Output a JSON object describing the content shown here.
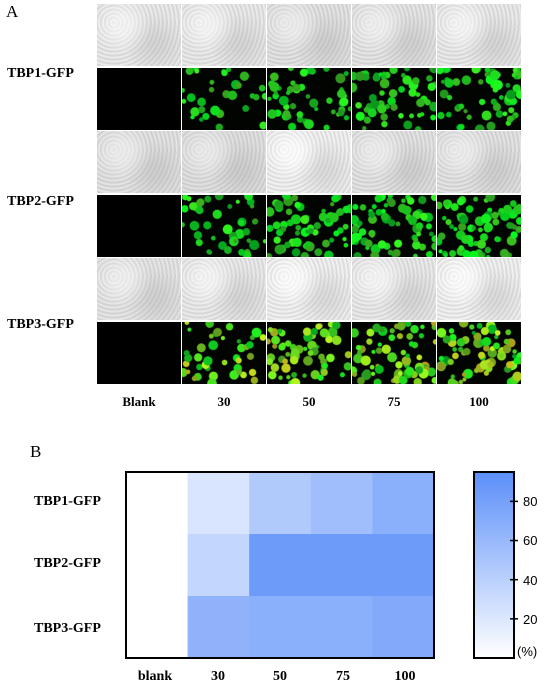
{
  "panelA": {
    "letter": "A",
    "rows": [
      "TBP1-GFP",
      "TBP2-GFP",
      "TBP3-GFP"
    ],
    "columns": [
      "Blank",
      "30",
      "50",
      "75",
      "100"
    ]
  },
  "panelB": {
    "letter": "B",
    "colorbar_unit": "(%)",
    "colorbar_ticks": [
      "80",
      "60",
      "40",
      "20"
    ]
  },
  "chart_data": {
    "type": "heatmap",
    "rows": [
      "TBP1-GFP",
      "TBP2-GFP",
      "TBP3-GFP"
    ],
    "columns": [
      "blank",
      "30",
      "50",
      "75",
      "100"
    ],
    "values": [
      [
        0,
        22,
        45,
        55,
        68
      ],
      [
        0,
        35,
        85,
        85,
        85
      ],
      [
        0,
        65,
        67,
        67,
        72
      ]
    ],
    "colorbar_range": [
      0,
      95
    ],
    "color_low": "#ffffff",
    "color_high": "#5b8ff9"
  }
}
